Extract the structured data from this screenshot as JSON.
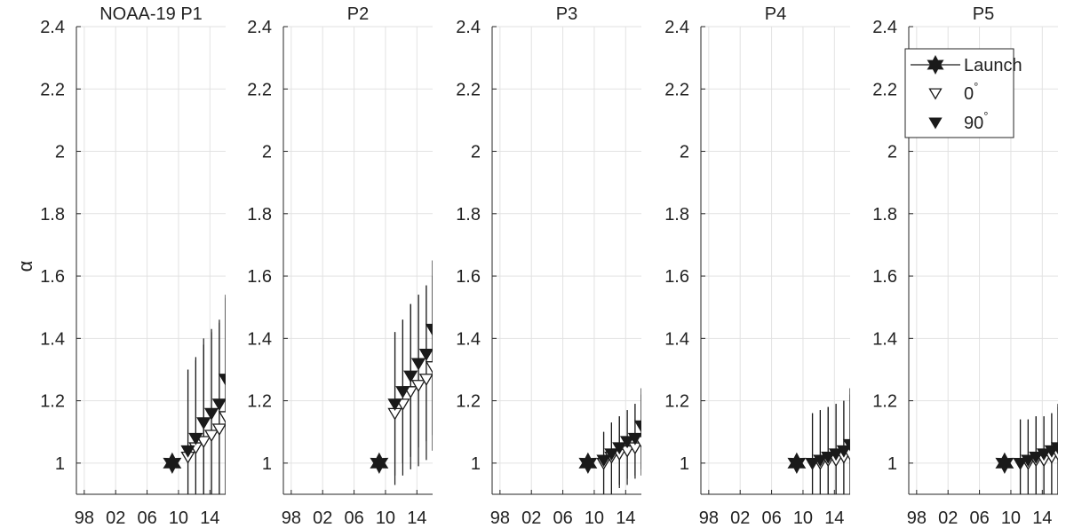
{
  "chart_data": {
    "type": "scatter",
    "ylabel": "α",
    "ylim": [
      0.9,
      2.4
    ],
    "yticks": [
      1,
      1.2,
      1.4,
      1.6,
      1.8,
      2,
      2.2,
      2.4
    ],
    "ytick_labels": [
      "1",
      "1.2",
      "1.4",
      "1.6",
      "1.8",
      "2",
      "2.2",
      "2.4"
    ],
    "xlim": [
      1997,
      2016
    ],
    "xticks": [
      1998,
      2002,
      2006,
      2010,
      2014
    ],
    "xtick_labels": [
      "98",
      "02",
      "06",
      "10",
      "14"
    ],
    "grid": true,
    "legend": {
      "placement": "top-right of last panel",
      "entries": [
        {
          "label": "Launch",
          "marker": "hexagram-filled"
        },
        {
          "label": "0",
          "superscript": "°",
          "marker": "triangle-down-open"
        },
        {
          "label": "90",
          "superscript": "°",
          "marker": "triangle-down-filled"
        }
      ]
    },
    "panels": [
      {
        "title": "NOAA-19 P1",
        "launch": {
          "x": 2009.2,
          "y": 1.0
        },
        "series": [
          {
            "label": "0°",
            "x": [
              2011.2,
              2012.2,
              2013.2,
              2014.2,
              2015.2,
              2016.0
            ],
            "y": [
              1.02,
              1.05,
              1.07,
              1.09,
              1.11,
              1.15
            ],
            "err_low": [
              0.9,
              0.9,
              0.9,
              0.9,
              0.9,
              0.9
            ],
            "err_high": [
              1.3,
              1.33,
              1.38,
              1.42,
              1.45,
              1.53
            ]
          },
          {
            "label": "90°",
            "x": [
              2011.2,
              2012.2,
              2013.2,
              2014.2,
              2015.2,
              2016.0
            ],
            "y": [
              1.04,
              1.08,
              1.13,
              1.16,
              1.19,
              1.27
            ],
            "err_low": [
              0.9,
              0.9,
              0.9,
              0.9,
              0.9,
              0.9
            ],
            "err_high": [
              1.3,
              1.34,
              1.4,
              1.43,
              1.46,
              1.54
            ]
          }
        ]
      },
      {
        "title": "P2",
        "launch": {
          "x": 2009.2,
          "y": 1.0
        },
        "series": [
          {
            "label": "0°",
            "x": [
              2011.2,
              2012.2,
              2013.2,
              2014.2,
              2015.2,
              2016.0
            ],
            "y": [
              1.16,
              1.19,
              1.23,
              1.25,
              1.27,
              1.31
            ],
            "err_low": [
              0.93,
              0.96,
              0.98,
              0.99,
              1.01,
              1.04
            ],
            "err_high": [
              1.42,
              1.46,
              1.51,
              1.54,
              1.57,
              1.6
            ]
          },
          {
            "label": "90°",
            "x": [
              2011.2,
              2012.2,
              2013.2,
              2014.2,
              2015.2,
              2016.0
            ],
            "y": [
              1.19,
              1.23,
              1.28,
              1.32,
              1.35,
              1.43
            ],
            "err_low": [
              0.96,
              1.0,
              1.02,
              1.05,
              1.07,
              1.09
            ],
            "err_high": [
              1.42,
              1.46,
              1.51,
              1.54,
              1.57,
              1.65
            ]
          }
        ]
      },
      {
        "title": "P3",
        "launch": {
          "x": 2009.2,
          "y": 1.0
        },
        "series": [
          {
            "label": "0°",
            "x": [
              2011.2,
              2012.2,
              2013.2,
              2014.2,
              2015.2,
              2016.0
            ],
            "y": [
              1.0,
              1.02,
              1.03,
              1.04,
              1.05,
              1.07
            ],
            "err_low": [
              0.9,
              0.9,
              0.92,
              0.93,
              0.95,
              0.96
            ],
            "err_high": [
              1.1,
              1.13,
              1.15,
              1.17,
              1.19,
              1.22
            ]
          },
          {
            "label": "90°",
            "x": [
              2011.2,
              2012.2,
              2013.2,
              2014.2,
              2015.2,
              2016.0
            ],
            "y": [
              1.01,
              1.03,
              1.05,
              1.07,
              1.08,
              1.12
            ],
            "err_low": [
              0.9,
              0.9,
              0.93,
              0.95,
              0.96,
              0.98
            ],
            "err_high": [
              1.1,
              1.13,
              1.15,
              1.17,
              1.19,
              1.24
            ]
          }
        ]
      },
      {
        "title": "P4",
        "launch": {
          "x": 2009.2,
          "y": 1.0
        },
        "series": [
          {
            "label": "0°",
            "x": [
              2011.2,
              2012.2,
              2013.2,
              2014.2,
              2015.2,
              2016.0
            ],
            "y": [
              1.0,
              1.0,
              1.01,
              1.01,
              1.02,
              1.03
            ],
            "err_low": [
              0.9,
              0.9,
              0.9,
              0.9,
              0.9,
              0.9
            ],
            "err_high": [
              1.16,
              1.17,
              1.18,
              1.19,
              1.2,
              1.22
            ]
          },
          {
            "label": "90°",
            "x": [
              2011.2,
              2012.2,
              2013.2,
              2014.2,
              2015.2,
              2016.0
            ],
            "y": [
              1.0,
              1.01,
              1.02,
              1.03,
              1.04,
              1.06
            ],
            "err_low": [
              0.9,
              0.9,
              0.9,
              0.9,
              0.9,
              0.9
            ],
            "err_high": [
              1.16,
              1.17,
              1.18,
              1.19,
              1.2,
              1.24
            ]
          }
        ]
      },
      {
        "title": "P5",
        "launch": {
          "x": 2009.2,
          "y": 1.0
        },
        "series": [
          {
            "label": "0°",
            "x": [
              2011.2,
              2012.2,
              2013.2,
              2014.2,
              2015.2,
              2016.0
            ],
            "y": [
              1.0,
              1.0,
              1.01,
              1.01,
              1.02,
              1.03
            ],
            "err_low": [
              0.9,
              0.9,
              0.9,
              0.9,
              0.9,
              0.9
            ],
            "err_high": [
              1.14,
              1.14,
              1.15,
              1.15,
              1.16,
              1.18
            ]
          },
          {
            "label": "90°",
            "x": [
              2011.2,
              2012.2,
              2013.2,
              2014.2,
              2015.2,
              2016.0
            ],
            "y": [
              1.0,
              1.01,
              1.02,
              1.03,
              1.04,
              1.05
            ],
            "err_low": [
              0.9,
              0.9,
              0.9,
              0.9,
              0.9,
              0.9
            ],
            "err_high": [
              1.14,
              1.14,
              1.15,
              1.15,
              1.16,
              1.19
            ]
          }
        ]
      }
    ]
  }
}
